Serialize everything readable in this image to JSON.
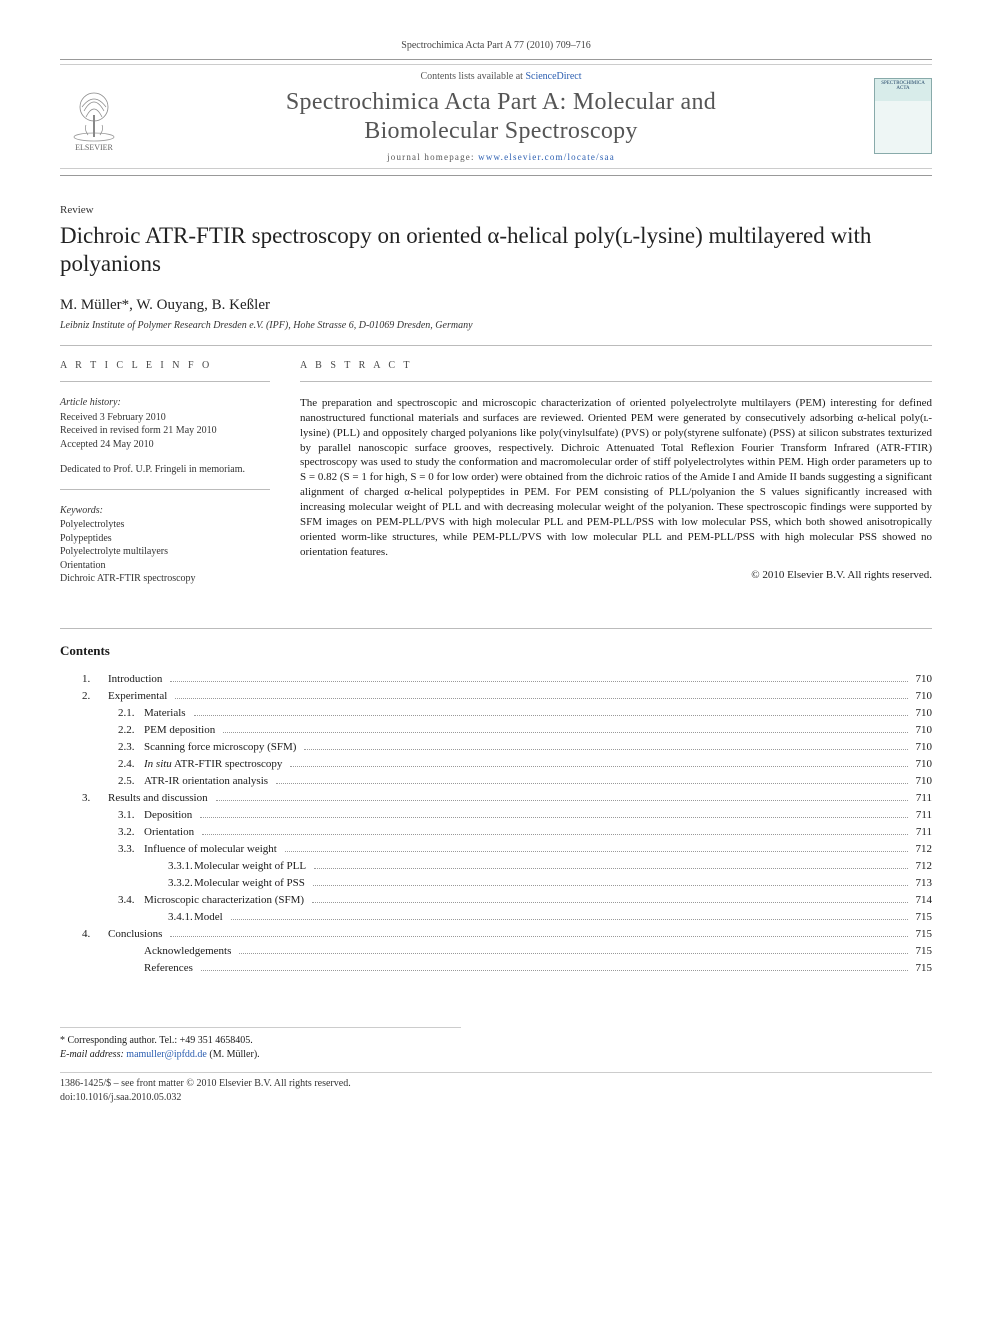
{
  "header": {
    "citation": "Spectrochimica Acta Part A 77 (2010) 709–716",
    "contents_prefix": "Contents lists available at ",
    "contents_link": "ScienceDirect",
    "journal_name_l1": "Spectrochimica Acta Part A: Molecular and",
    "journal_name_l2": "Biomolecular Spectroscopy",
    "homepage_prefix": "journal homepage: ",
    "homepage_url": "www.elsevier.com/locate/saa",
    "publisher_label": "ELSEVIER",
    "cover_text": "SPECTROCHIMICA ACTA"
  },
  "article": {
    "type": "Review",
    "title": "Dichroic ATR-FTIR spectroscopy on oriented α-helical poly(ʟ-lysine) multilayered with polyanions",
    "authors": "M. Müller*, W. Ouyang, B. Keßler",
    "affiliation": "Leibniz Institute of Polymer Research Dresden e.V. (IPF), Hohe Strasse 6, D-01069 Dresden, Germany"
  },
  "info": {
    "heading": "a r t i c l e   i n f o",
    "history_label": "Article history:",
    "received": "Received 3 February 2010",
    "revised": "Received in revised form 21 May 2010",
    "accepted": "Accepted 24 May 2010",
    "dedication": "Dedicated to Prof. U.P. Fringeli in memoriam.",
    "keywords_label": "Keywords:",
    "keywords": [
      "Polyelectrolytes",
      "Polypeptides",
      "Polyelectrolyte multilayers",
      "Orientation",
      "Dichroic ATR-FTIR spectroscopy"
    ]
  },
  "abstract": {
    "heading": "a b s t r a c t",
    "body": "The preparation and spectroscopic and microscopic characterization of oriented polyelectrolyte multilayers (PEM) interesting for defined nanostructured functional materials and surfaces are reviewed. Oriented PEM were generated by consecutively adsorbing α-helical poly(ʟ-lysine) (PLL) and oppositely charged polyanions like poly(vinylsulfate) (PVS) or poly(styrene sulfonate) (PSS) at silicon substrates texturized by parallel nanoscopic surface grooves, respectively. Dichroic Attenuated Total Reflexion Fourier Transform Infrared (ATR-FTIR) spectroscopy was used to study the conformation and macromolecular order of stiff polyelectrolytes within PEM. High order parameters up to S = 0.82 (S = 1 for high, S = 0 for low order) were obtained from the dichroic ratios of the Amide I and Amide II bands suggesting a significant alignment of charged α-helical polypeptides in PEM. For PEM consisting of PLL/polyanion the S values significantly increased with increasing molecular weight of PLL and with decreasing molecular weight of the polyanion. These spectroscopic findings were supported by SFM images on PEM-PLL/PVS with high molecular PLL and PEM-PLL/PSS with low molecular PSS, which both showed anisotropically oriented worm-like structures, while PEM-PLL/PVS with low molecular PLL and PEM-PLL/PSS with high molecular PSS showed no orientation features.",
    "copyright": "© 2010 Elsevier B.V. All rights reserved."
  },
  "contents": {
    "heading": "Contents",
    "items": [
      {
        "num": "1.",
        "title": "Introduction",
        "page": "710",
        "lvl": 1
      },
      {
        "num": "2.",
        "title": "Experimental",
        "page": "710",
        "lvl": 1
      },
      {
        "num": "2.1.",
        "title": "Materials",
        "page": "710",
        "lvl": 2
      },
      {
        "num": "2.2.",
        "title": "PEM deposition",
        "page": "710",
        "lvl": 2
      },
      {
        "num": "2.3.",
        "title": "Scanning force microscopy (SFM)",
        "page": "710",
        "lvl": 2
      },
      {
        "num": "2.4.",
        "title": "In situ ATR-FTIR spectroscopy",
        "page": "710",
        "lvl": 2
      },
      {
        "num": "2.5.",
        "title": "ATR-IR orientation analysis",
        "page": "710",
        "lvl": 2
      },
      {
        "num": "3.",
        "title": "Results and discussion",
        "page": "711",
        "lvl": 1
      },
      {
        "num": "3.1.",
        "title": "Deposition",
        "page": "711",
        "lvl": 2
      },
      {
        "num": "3.2.",
        "title": "Orientation",
        "page": "711",
        "lvl": 2
      },
      {
        "num": "3.3.",
        "title": "Influence of molecular weight",
        "page": "712",
        "lvl": 2
      },
      {
        "num": "3.3.1.",
        "title": "Molecular weight of PLL",
        "page": "712",
        "lvl": 3
      },
      {
        "num": "3.3.2.",
        "title": "Molecular weight of PSS",
        "page": "713",
        "lvl": 3
      },
      {
        "num": "3.4.",
        "title": "Microscopic characterization (SFM)",
        "page": "714",
        "lvl": 2
      },
      {
        "num": "3.4.1.",
        "title": "Model",
        "page": "715",
        "lvl": 3
      },
      {
        "num": "4.",
        "title": "Conclusions",
        "page": "715",
        "lvl": 1
      },
      {
        "num": "",
        "title": "Acknowledgements",
        "page": "715",
        "lvl": 2
      },
      {
        "num": "",
        "title": "References",
        "page": "715",
        "lvl": 2
      }
    ]
  },
  "footnotes": {
    "corr_label": "* Corresponding author. Tel.: +49 351 4658405.",
    "email_label": "E-mail address: ",
    "email": "mamuller@ipfdd.de",
    "email_suffix": " (M. Müller)."
  },
  "footer": {
    "line1": "1386-1425/$ – see front matter © 2010 Elsevier B.V. All rights reserved.",
    "doi": "doi:10.1016/j.saa.2010.05.032"
  },
  "style": {
    "link_color": "#2a5db0",
    "rule_color": "#bbbbbb",
    "text_color": "#1a1a1a",
    "journal_name_color": "#555555"
  }
}
